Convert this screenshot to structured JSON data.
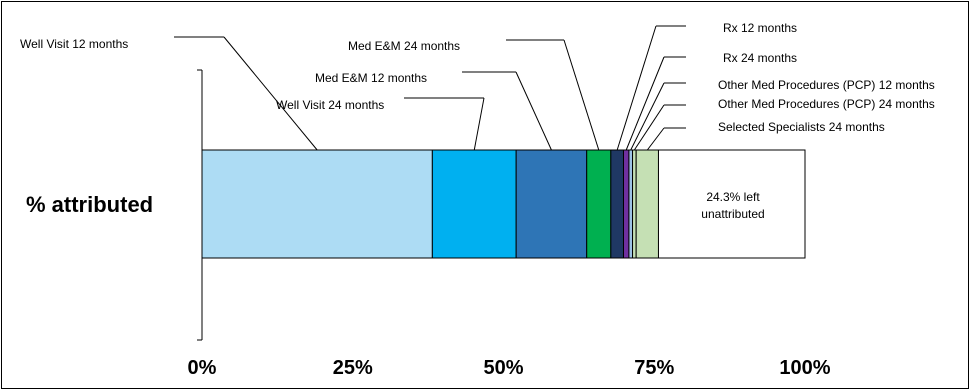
{
  "chart_data": {
    "type": "bar",
    "orientation": "horizontal-stacked",
    "categories": [
      "% attributed"
    ],
    "xlim": [
      0,
      100
    ],
    "x_ticks": [
      "0%",
      "25%",
      "50%",
      "75%",
      "100%"
    ],
    "grid": false,
    "series": [
      {
        "name": "Well Visit 12 months",
        "values": [
          38.2
        ],
        "color": "#addcf4"
      },
      {
        "name": "Well Visit 24 months",
        "values": [
          13.9
        ],
        "color": "#00b0f0"
      },
      {
        "name": "Med E&M 12 months",
        "values": [
          11.7
        ],
        "color": "#2e75b6"
      },
      {
        "name": "Med E&M 24 months",
        "values": [
          4.0
        ],
        "color": "#00b050"
      },
      {
        "name": "Rx 12 months",
        "values": [
          2.1
        ],
        "color": "#1f3864"
      },
      {
        "name": "Rx 24 months",
        "values": [
          0.9
        ],
        "color": "#7030a0"
      },
      {
        "name": "Other Med Procedures (PCP) 12 months",
        "values": [
          0.6
        ],
        "color": "#9dc3e6"
      },
      {
        "name": "Other Med Procedures (PCP) 24 months",
        "values": [
          0.6
        ],
        "color": "#c5e0b4"
      },
      {
        "name": "Selected Specialists 24 months",
        "values": [
          3.7
        ],
        "color": "#c5e0b4"
      }
    ],
    "remainder": {
      "value": 24.3,
      "label_line1": "24.3% left",
      "label_line2": "unattributed",
      "color": "#ffffff"
    }
  }
}
